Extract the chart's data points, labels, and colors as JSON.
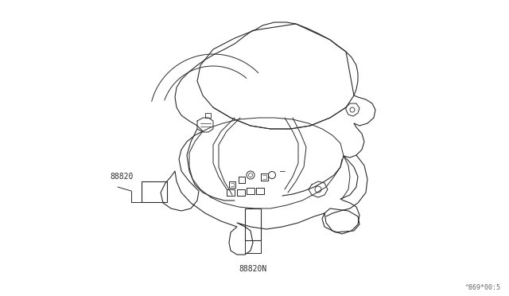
{
  "background_color": "#ffffff",
  "line_color": "#2a2a2a",
  "label_88820": "88820",
  "label_88820N": "88820N",
  "watermark": "^869*00:5",
  "figsize": [
    6.4,
    3.72
  ],
  "dpi": 100
}
